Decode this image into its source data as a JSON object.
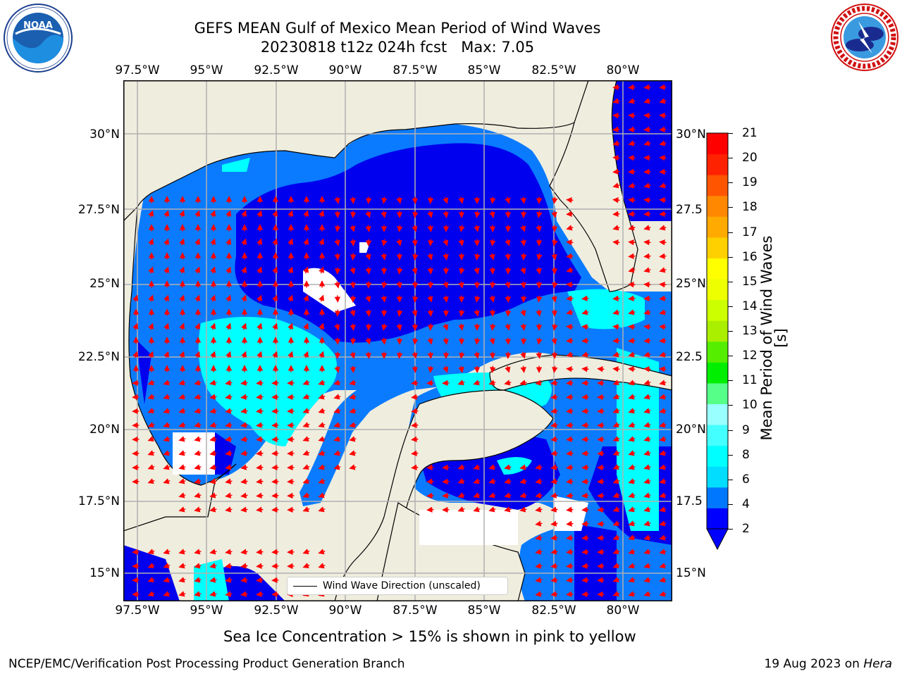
{
  "title": {
    "line1": "GEFS MEAN Gulf of Mexico Mean Period of Wind Waves",
    "line2": "20230818 t12z 024h fcst   Max: 7.05"
  },
  "logos": {
    "left": {
      "icon": "noaa-logo",
      "text": "NOAA",
      "ring_text": "NATIONAL OCEANIC AND ATMOSPHERIC ADMINISTRATION · U.S. DEPARTMENT OF COMMERCE"
    },
    "right": {
      "icon": "nws-logo",
      "ring_text": "NATIONAL WEATHER SERVICE"
    }
  },
  "map": {
    "lon_ticks": [
      "97.5°W",
      "95°W",
      "92.5°W",
      "90°W",
      "87.5°W",
      "85°W",
      "82.5°W",
      "80°W"
    ],
    "lat_ticks_left": [
      "30°N",
      "27.5°N",
      "25°N",
      "22.5°N",
      "20°N",
      "17.5°N",
      "15°N"
    ],
    "lat_ticks_right": [
      "30°N",
      "27.5",
      "25°N",
      "22.5",
      "20°N",
      "17.5",
      "15°N"
    ],
    "legend_label": "Wind Wave Direction (unscaled)",
    "colors": {
      "land": "#efedde",
      "ocean_low": "#0000ee",
      "ocean_mid": "#0a7bff",
      "ocean_high": "#00ffff",
      "vector": "#ff0000",
      "grid": "#b0b0b0"
    }
  },
  "colorbar": {
    "label": "Mean Period of Wind Waves [s]",
    "ticks": [
      "2",
      "4",
      "6",
      "8",
      "9",
      "10",
      "11",
      "12",
      "13",
      "14",
      "15",
      "16",
      "17",
      "18",
      "19",
      "20",
      "21"
    ],
    "colors": [
      "#0000ff",
      "#0077ff",
      "#00ddff",
      "#00ffff",
      "#44ffff",
      "#99ffff",
      "#55ff88",
      "#00ee00",
      "#55ee00",
      "#aaee00",
      "#ccff00",
      "#eeff00",
      "#ffff00",
      "#ffd000",
      "#ffaa00",
      "#ff8800",
      "#ff5500",
      "#ff2200",
      "#ff0000"
    ]
  },
  "subtitle": "Sea Ice Concentration > 15% is shown in pink to yellow",
  "footer": {
    "left": "NCEP/EMC/Verification Post Processing Product Generation Branch",
    "right_date": "19 Aug 2023 on ",
    "right_host": "Hera"
  }
}
